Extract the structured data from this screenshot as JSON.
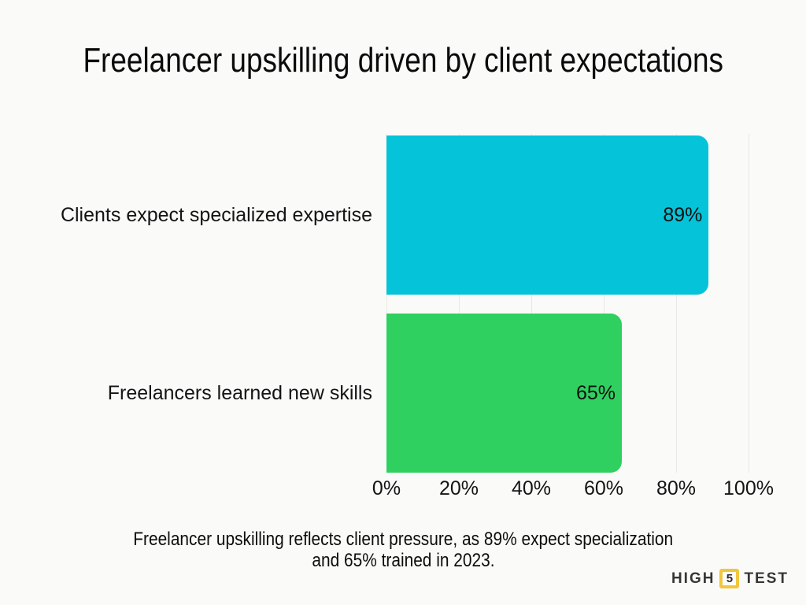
{
  "title": "Freelancer upskilling driven by client expectations",
  "chart_data": {
    "type": "bar",
    "orientation": "horizontal",
    "title": "Freelancer upskilling driven by client expectations",
    "categories": [
      "Clients expect specialized expertise",
      "Freelancers learned new skills"
    ],
    "values": [
      89,
      65
    ],
    "data_labels": [
      "89%",
      "65%"
    ],
    "bar_colors": [
      "#05c3d9",
      "#2fd05f"
    ],
    "x_tick_labels": [
      "0%",
      "20%",
      "40%",
      "60%",
      "80%",
      "100%"
    ],
    "xlim": [
      0,
      100
    ],
    "grid": "vertical gridlines at 20% intervals",
    "gridline_color": "#e8e8e4",
    "background_color": "#fafaf8",
    "legend": false
  },
  "caption": {
    "line1": "Freelancer upskilling reflects client pressure, as 89% expect specialization",
    "line2": "and 65% trained in 2023."
  },
  "logo": {
    "word1": "HIGH",
    "badge": "5",
    "word2": "TEST",
    "badge_border_color": "#f1c63f"
  }
}
